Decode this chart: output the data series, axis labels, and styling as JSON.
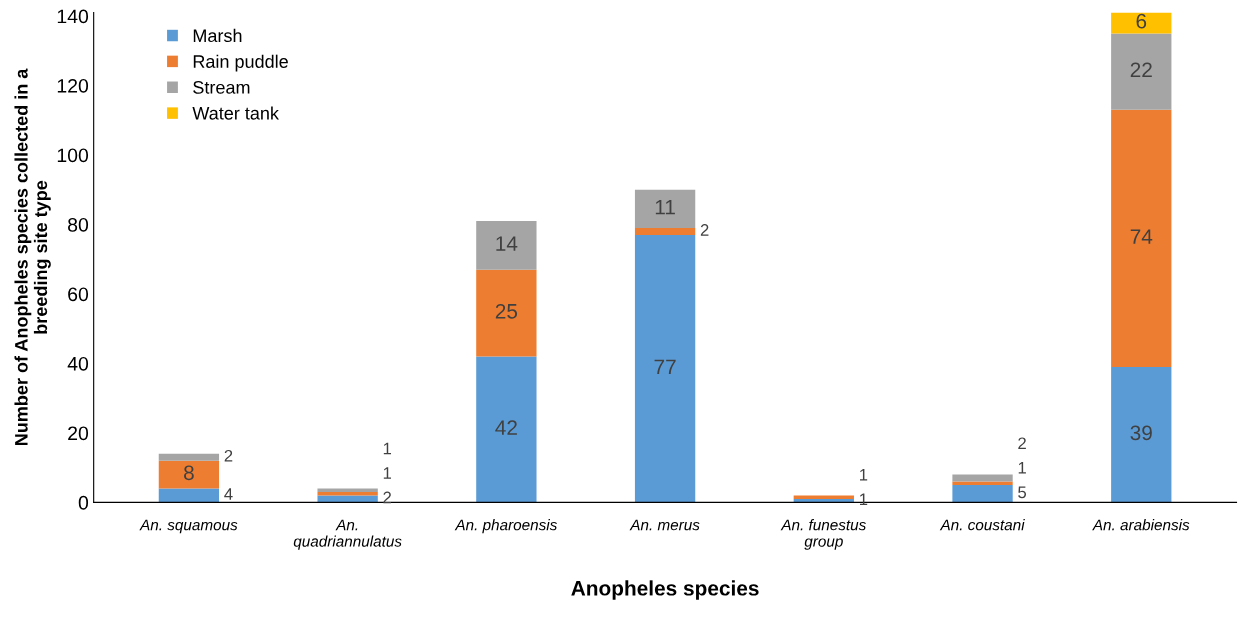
{
  "chart_data": {
    "type": "bar",
    "stacked": true,
    "categories": [
      "An. squamous",
      "An.\nquadriannulatus",
      "An. pharoensis",
      "An. merus",
      "An. funestus\ngroup",
      "An. coustani",
      "An. arabiensis"
    ],
    "series": [
      {
        "name": "Marsh",
        "color": "#5b9bd5",
        "values": [
          4,
          2,
          42,
          77,
          1,
          5,
          39
        ]
      },
      {
        "name": "Rain puddle",
        "color": "#ed7d31",
        "values": [
          8,
          1,
          25,
          2,
          1,
          1,
          74
        ]
      },
      {
        "name": "Stream",
        "color": "#a5a5a5",
        "values": [
          2,
          1,
          14,
          11,
          null,
          2,
          22
        ]
      },
      {
        "name": "Water tank",
        "color": "#ffc000",
        "values": [
          null,
          null,
          null,
          null,
          null,
          null,
          6
        ]
      }
    ],
    "xlabel": "Anopheles species",
    "ylabel": "Number of Anopheles species collected in a\nbreeding site type",
    "ylim": [
      0,
      141
    ],
    "yticks": [
      0,
      20,
      40,
      60,
      80,
      100,
      120,
      140
    ],
    "data_labels": true,
    "legend": "top left",
    "grid": false
  }
}
